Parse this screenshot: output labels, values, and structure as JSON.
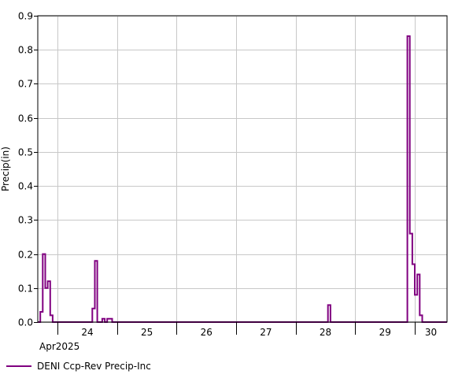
{
  "chart_data": {
    "type": "line",
    "step": true,
    "title": "",
    "xlabel": "",
    "ylabel": "Precip(in)",
    "ylim": [
      0,
      0.9
    ],
    "y_ticks": [
      0.0,
      0.1,
      0.2,
      0.3,
      0.4,
      0.5,
      0.6,
      0.7,
      0.8,
      0.9
    ],
    "y_tick_labels": [
      "0.0",
      "0.1",
      "0.2",
      "0.3",
      "0.4",
      "0.5",
      "0.6",
      "0.7",
      "0.8",
      "0.9"
    ],
    "x_range": [
      "2025-04-23T16:00",
      "2025-04-30T13:00"
    ],
    "x_ticks": [
      {
        "label": "24",
        "day": "2025-04-24"
      },
      {
        "label": "25",
        "day": "2025-04-25"
      },
      {
        "label": "26",
        "day": "2025-04-26"
      },
      {
        "label": "27",
        "day": "2025-04-27"
      },
      {
        "label": "28",
        "day": "2025-04-28"
      },
      {
        "label": "29",
        "day": "2025-04-29"
      },
      {
        "label": "30",
        "day": "2025-04-30"
      }
    ],
    "x_sublabel": "Apr2025",
    "grid": true,
    "legend_position": "bottom-left",
    "series": [
      {
        "name": "DENI Ccp-Rev Precip-Inc",
        "color": "#800080",
        "points": [
          [
            "2025-04-23T16:00",
            0.0
          ],
          [
            "2025-04-23T17:00",
            0.03
          ],
          [
            "2025-04-23T18:00",
            0.2
          ],
          [
            "2025-04-23T19:00",
            0.1
          ],
          [
            "2025-04-23T20:00",
            0.12
          ],
          [
            "2025-04-23T21:00",
            0.02
          ],
          [
            "2025-04-23T22:00",
            0.0
          ],
          [
            "2025-04-24T14:00",
            0.04
          ],
          [
            "2025-04-24T15:00",
            0.18
          ],
          [
            "2025-04-24T16:00",
            0.0
          ],
          [
            "2025-04-24T18:00",
            0.01
          ],
          [
            "2025-04-24T19:00",
            0.0
          ],
          [
            "2025-04-24T20:00",
            0.01
          ],
          [
            "2025-04-24T22:00",
            0.0
          ],
          [
            "2025-04-28T13:00",
            0.05
          ],
          [
            "2025-04-28T14:00",
            0.0
          ],
          [
            "2025-04-29T21:00",
            0.84
          ],
          [
            "2025-04-29T22:00",
            0.26
          ],
          [
            "2025-04-29T23:00",
            0.17
          ],
          [
            "2025-04-30T00:00",
            0.08
          ],
          [
            "2025-04-30T01:00",
            0.14
          ],
          [
            "2025-04-30T02:00",
            0.02
          ],
          [
            "2025-04-30T03:00",
            0.0
          ]
        ]
      }
    ]
  }
}
